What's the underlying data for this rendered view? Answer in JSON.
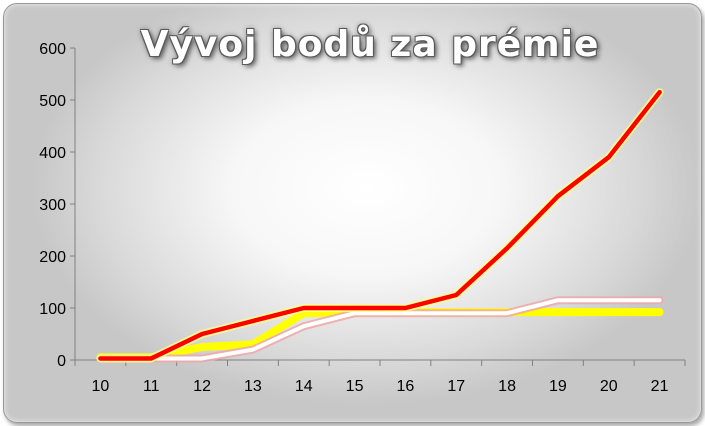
{
  "chart_data": {
    "type": "line",
    "title": "Vývoj bodů za prémie",
    "xlabel": "",
    "ylabel": "",
    "categories": [
      "10",
      "11",
      "12",
      "13",
      "14",
      "15",
      "16",
      "17",
      "18",
      "19",
      "20",
      "21"
    ],
    "ylim": [
      0,
      600
    ],
    "yticks": [
      0,
      100,
      200,
      300,
      400,
      500,
      600
    ],
    "grid": false,
    "legend": "none",
    "series": [
      {
        "color": "#ffff00",
        "values": [
          5,
          5,
          25,
          30,
          90,
          92,
          92,
          92,
          92,
          92,
          92,
          92
        ]
      },
      {
        "color": "#ffffff",
        "edge": "#f0a8a8",
        "values": [
          3,
          3,
          3,
          20,
          65,
          90,
          90,
          90,
          90,
          115,
          115,
          115
        ]
      },
      {
        "color": "#ff0000",
        "edge": "#ffff88",
        "values": [
          3,
          3,
          50,
          75,
          100,
          100,
          100,
          125,
          215,
          315,
          390,
          515
        ]
      }
    ]
  }
}
